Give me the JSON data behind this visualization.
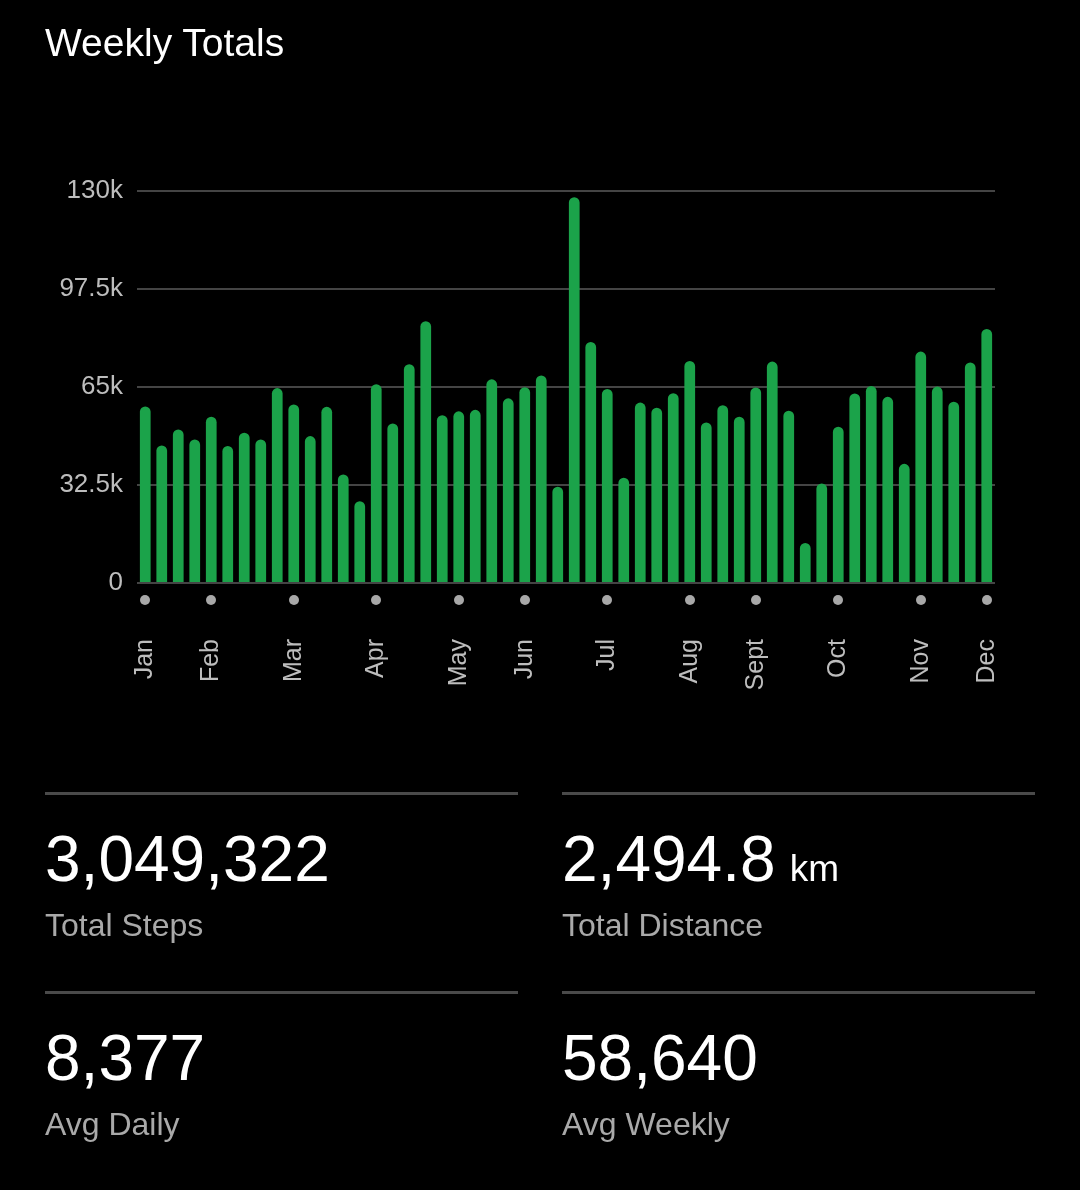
{
  "chart_data": [
    {
      "type": "bar",
      "title": "Weekly Totals",
      "color": "#1ba34a",
      "grid": "y",
      "categories": [
        "Jan",
        null,
        null,
        null,
        "Feb",
        null,
        null,
        null,
        null,
        "Mar",
        null,
        null,
        null,
        null,
        "Apr",
        null,
        null,
        null,
        null,
        "May",
        null,
        null,
        null,
        "Jun",
        null,
        null,
        null,
        null,
        "Jul",
        null,
        null,
        null,
        null,
        "Aug",
        null,
        null,
        null,
        "Sept",
        null,
        null,
        null,
        null,
        "Oct",
        null,
        null,
        null,
        null,
        "Nov",
        null,
        null,
        null,
        "Dec"
      ],
      "values": [
        58500,
        45600,
        50900,
        47600,
        55100,
        45400,
        49800,
        47600,
        64600,
        59200,
        48700,
        58400,
        36000,
        27100,
        65900,
        52900,
        72500,
        86800,
        55600,
        56900,
        57400,
        67500,
        61200,
        64900,
        68800,
        31900,
        127900,
        79900,
        64300,
        34900,
        59800,
        58100,
        62900,
        73600,
        53200,
        58900,
        55100,
        64800,
        73400,
        57100,
        13300,
        33000,
        51800,
        62800,
        65300,
        61700,
        39500,
        76700,
        65100,
        60100,
        73100,
        84200
      ],
      "ylim": [
        0,
        130000
      ],
      "yticks": [
        0,
        {
          "value": 32500,
          "label": "32.5k"
        },
        {
          "value": 65000,
          "label": "65k"
        },
        {
          "value": 97500,
          "label": "97.5k"
        },
        {
          "value": 130000,
          "label": "130k"
        }
      ]
    },
    {
      "type": "other",
      "annotations": [
        "3,049,322",
        "Total Steps",
        "2,494.8 km",
        "Total Distance",
        "8,377",
        "Avg Daily",
        "58,640",
        "Avg Weekly"
      ]
    }
  ]
}
